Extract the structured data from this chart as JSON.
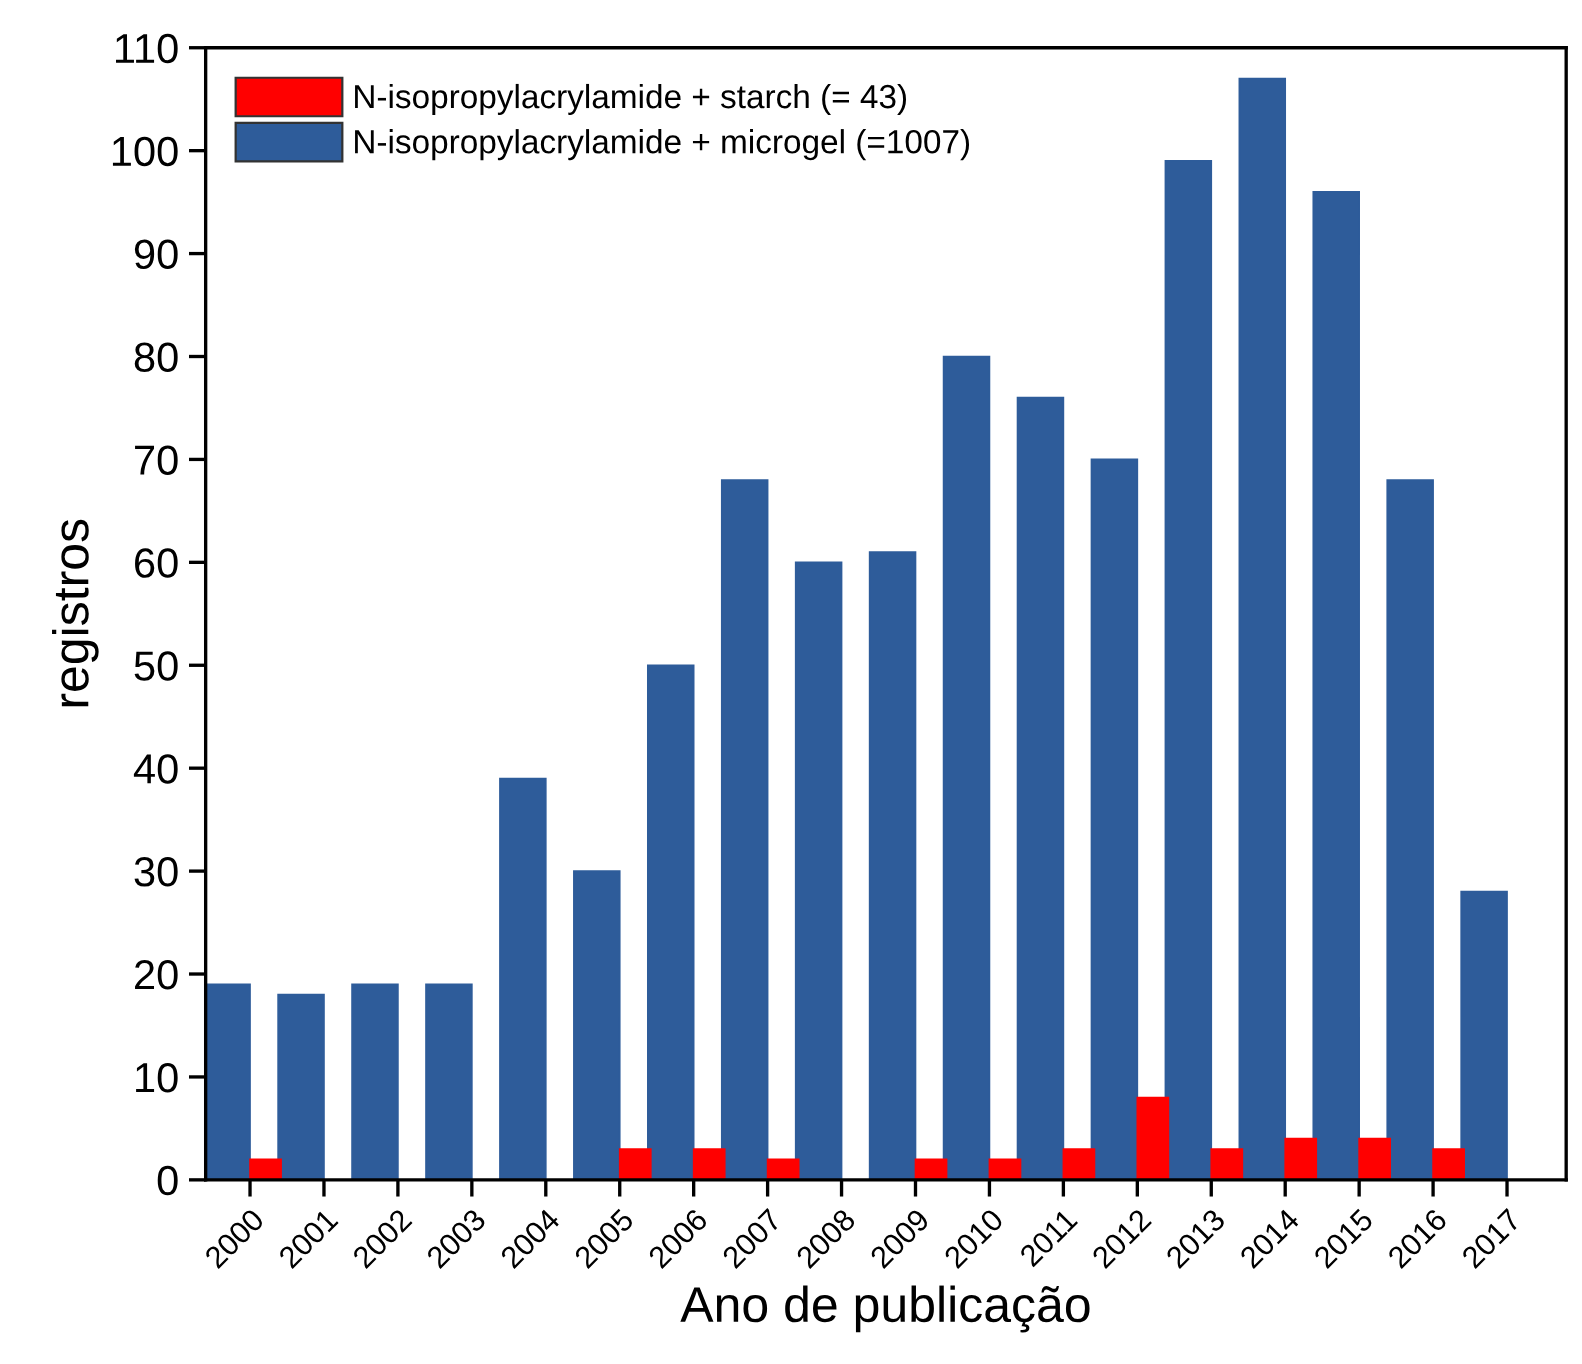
{
  "chart_data": {
    "type": "bar",
    "xlabel": "Ano de publicação",
    "ylabel": "registros",
    "categories": [
      "2000",
      "2001",
      "2002",
      "2003",
      "2004",
      "2005",
      "2006",
      "2007",
      "2008",
      "2009",
      "2010",
      "2011",
      "2012",
      "2013",
      "2014",
      "2015",
      "2016",
      "2017"
    ],
    "series": [
      {
        "name": "N-isopropylacrylamide + microgel (=1007)",
        "color": "#2e5c9a",
        "values": [
          19,
          18,
          19,
          19,
          39,
          30,
          50,
          68,
          60,
          61,
          80,
          76,
          70,
          99,
          107,
          96,
          68,
          28
        ]
      },
      {
        "name": "N-isopropylacrylamide + starch (= 43)",
        "color": "#ff0000",
        "values": [
          2,
          null,
          null,
          null,
          null,
          3,
          3,
          2,
          null,
          2,
          2,
          3,
          8,
          3,
          4,
          4,
          3,
          null
        ]
      }
    ],
    "ylim": [
      0,
      110
    ],
    "yticks": [
      0,
      10,
      20,
      30,
      40,
      50,
      60,
      70,
      80,
      90,
      100,
      110
    ],
    "legend": "top left",
    "grid": false
  }
}
